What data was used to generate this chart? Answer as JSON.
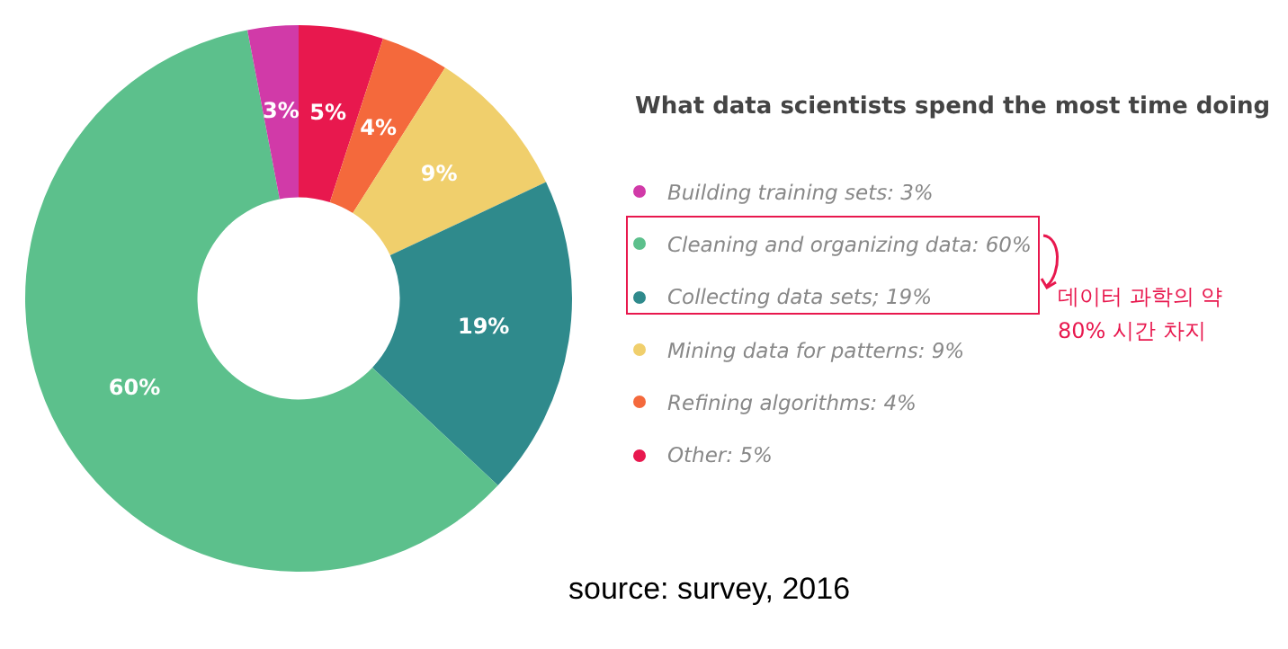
{
  "chart_data": {
    "type": "donut",
    "title": "What data scientists spend the most time doing",
    "categories": [
      "Building training sets: 3%",
      "Cleaning and organizing data: 60%",
      "Collecting data sets; 19%",
      "Mining data for patterns: 9%",
      "Refining algorithms: 4%",
      "Other: 5%"
    ],
    "values": [
      3,
      60,
      19,
      9,
      4,
      5
    ],
    "colors": [
      "#d13aa8",
      "#5cc08c",
      "#2f8a8c",
      "#f0cf6c",
      "#f4693c",
      "#e8184e"
    ],
    "value_labels": [
      "3%",
      "60%",
      "19%",
      "9%",
      "4%",
      "5%"
    ],
    "legend": "right",
    "annotations": [
      "데이터 과학의 약 80% 시간 차지",
      "source: survey, 2016"
    ]
  }
}
